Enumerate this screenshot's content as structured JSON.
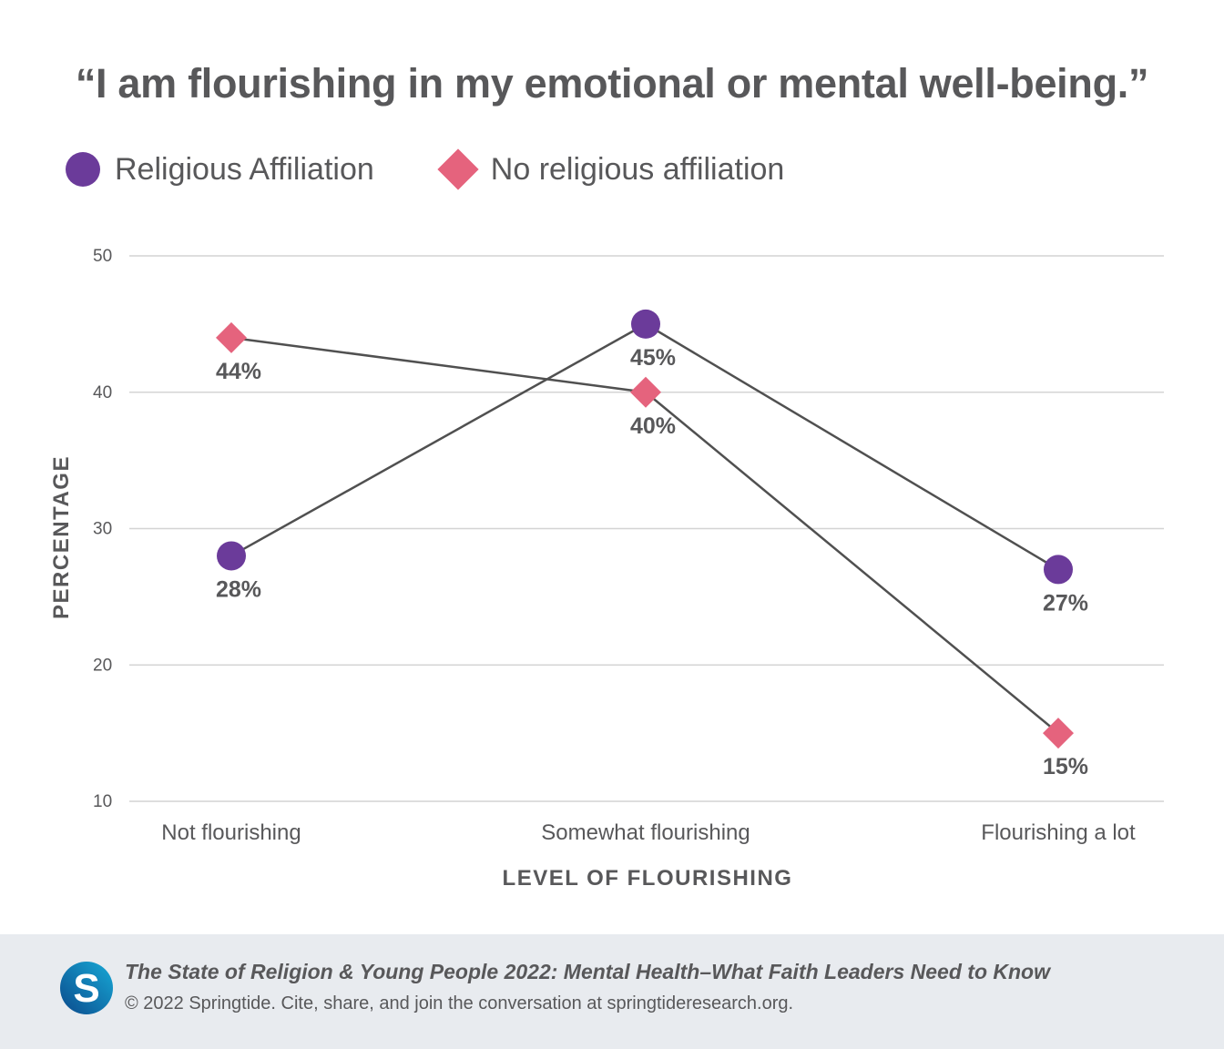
{
  "title": "“I am flourishing in my emotional or mental well-being.”",
  "legend": [
    {
      "label": "Religious Affiliation",
      "marker": "circle",
      "color": "#6b3b9a"
    },
    {
      "label": "No religious affiliation",
      "marker": "diamond",
      "color": "#e5637d"
    }
  ],
  "chart_data": {
    "type": "line",
    "categories": [
      "Not flourishing",
      "Somewhat flourishing",
      "Flourishing a lot"
    ],
    "series": [
      {
        "name": "Religious Affiliation",
        "values": [
          28,
          45,
          27
        ],
        "labels": [
          "28%",
          "45%",
          "27%"
        ],
        "marker": "circle",
        "color": "#6b3b9a"
      },
      {
        "name": "No religious affiliation",
        "values": [
          44,
          40,
          15
        ],
        "labels": [
          "44%",
          "40%",
          "15%"
        ],
        "marker": "diamond",
        "color": "#e5637d"
      }
    ],
    "xlabel": "LEVEL OF FLOURISHING",
    "ylabel": "PERCENTAGE",
    "ylim": [
      10,
      50
    ],
    "yticks": [
      10,
      20,
      30,
      40,
      50
    ],
    "grid": true,
    "line_color": "#505050"
  },
  "footer": {
    "title": "The State of Religion & Young People 2022: Mental Health–What Faith Leaders Need to Know",
    "credit": "© 2022 Springtide. Cite, share, and join the conversation at springtideresearch.org.",
    "logo_letter": "S",
    "logo_colors": [
      "#0b4a8c",
      "#17a9d6"
    ]
  }
}
